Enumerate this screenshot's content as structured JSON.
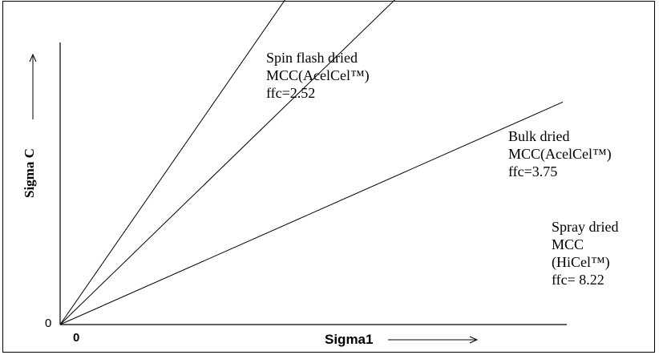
{
  "chart_data": {
    "type": "line",
    "title": "",
    "xlabel": "Sigma1",
    "ylabel": "Sigma C",
    "x_tick_labels": [
      "0"
    ],
    "y_tick_labels": [
      "0"
    ],
    "grid": false,
    "legend": "none",
    "series": [
      {
        "label_lines": [
          "Spin flash dried",
          "MCC(AcelCel™)",
          "ffc=2.52"
        ],
        "ffc": 2.52
      },
      {
        "label_lines": [
          "Bulk dried",
          "MCC(AcelCel™)",
          "ffc=3.75"
        ],
        "ffc": 3.75
      },
      {
        "label_lines": [
          "Spray dried",
          "MCC",
          "(HiCel™)",
          "ffc= 8.22"
        ],
        "ffc": 8.22
      }
    ],
    "colors": {
      "line": "#000000",
      "axis": "#000000"
    }
  }
}
